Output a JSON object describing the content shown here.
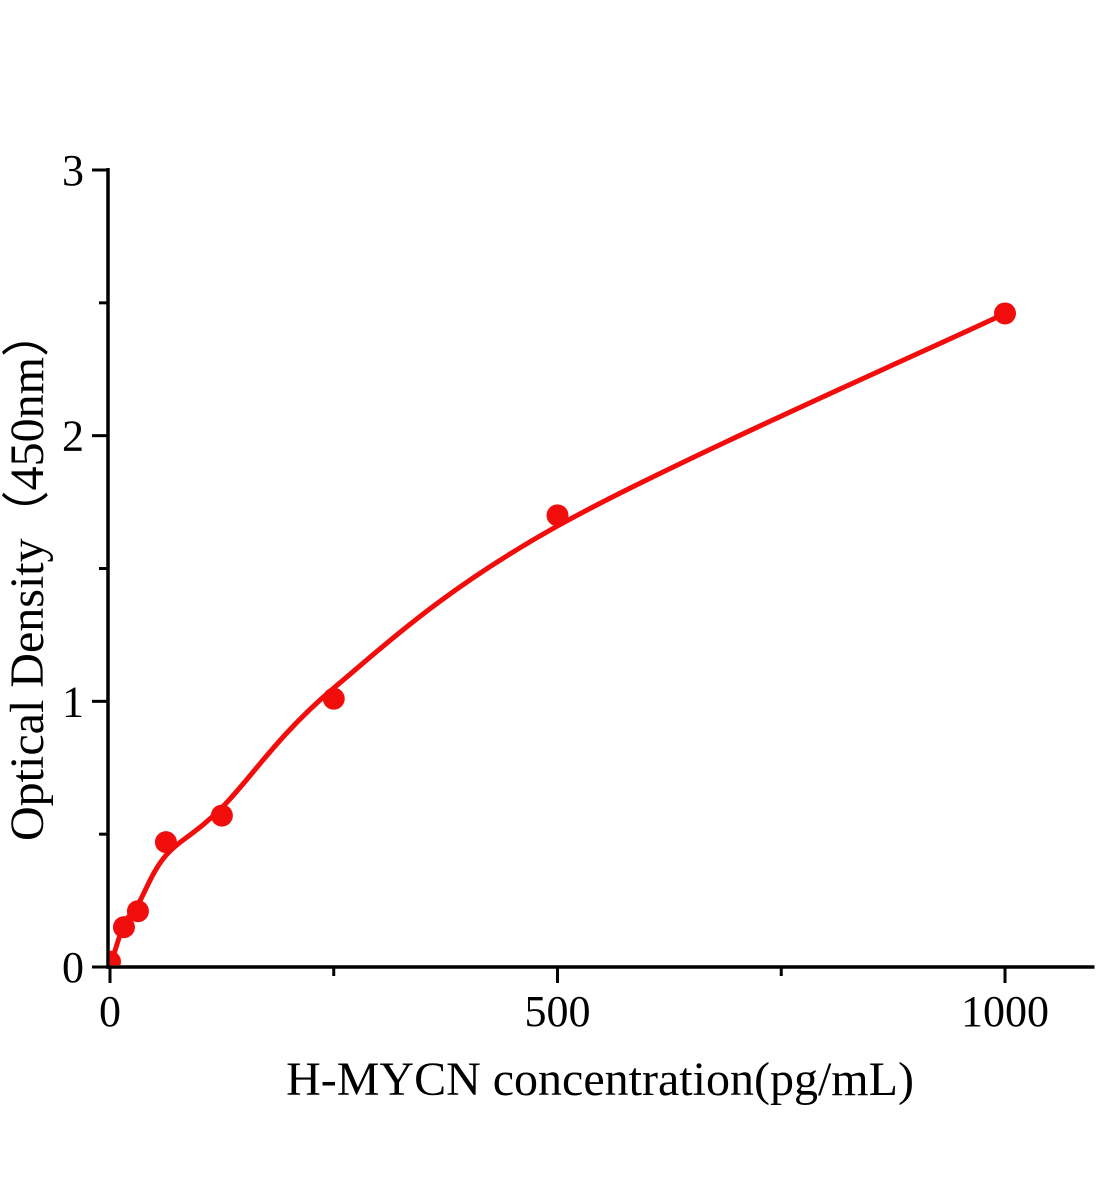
{
  "figure": {
    "background_color": "#ffffff",
    "axis_color": "#000000",
    "accent_color": "#f20d0d"
  },
  "chart_data": {
    "type": "scatter",
    "title": "",
    "xlabel": "H-MYCN concentration(pg/mL)",
    "ylabel": "Optical Density（450nm）",
    "xlim": [
      0,
      1100
    ],
    "ylim": [
      0,
      3
    ],
    "grid": false,
    "legend_position": "none",
    "x_major_ticks": [
      0,
      500,
      1000
    ],
    "x_minor_ticks": [
      250,
      750
    ],
    "y_major_ticks": [
      0,
      1,
      2,
      3
    ],
    "y_minor_ticks": [
      0.5,
      1.5,
      2.5
    ],
    "series": [
      {
        "marker": "circle",
        "color": "#f20d0d",
        "points": [
          {
            "x": 0,
            "y": 0.02
          },
          {
            "x": 15.6,
            "y": 0.15
          },
          {
            "x": 31.2,
            "y": 0.21
          },
          {
            "x": 62.5,
            "y": 0.47
          },
          {
            "x": 125,
            "y": 0.57
          },
          {
            "x": 250,
            "y": 1.01
          },
          {
            "x": 500,
            "y": 1.7
          },
          {
            "x": 1000,
            "y": 2.46
          }
        ],
        "fit_curve": [
          [
            0,
            0.0
          ],
          [
            15.6,
            0.16
          ],
          [
            31.2,
            0.235
          ],
          [
            62.5,
            0.42
          ],
          [
            125,
            0.6
          ],
          [
            250,
            1.05
          ],
          [
            500,
            1.66
          ],
          [
            1000,
            2.46
          ]
        ]
      }
    ]
  }
}
